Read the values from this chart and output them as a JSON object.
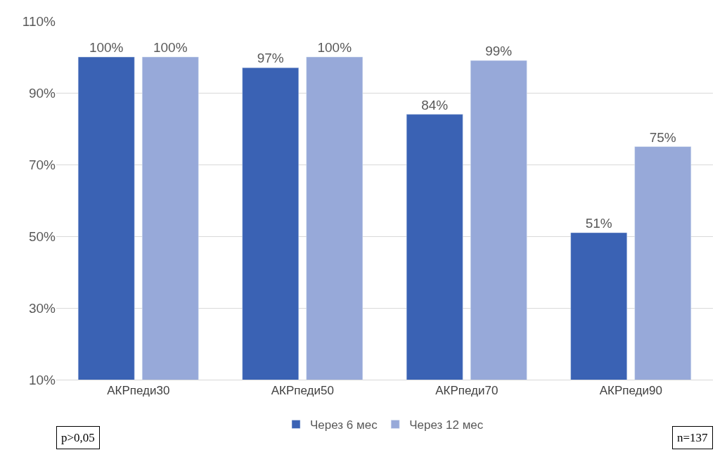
{
  "chart_data": {
    "type": "bar",
    "categories": [
      "АКРпеди30",
      "АКРпеди50",
      "АКРпеди70",
      "АКРпеди90"
    ],
    "series": [
      {
        "name": "Через 6 мес",
        "color": "#3a62b4",
        "values": [
          100,
          97,
          84,
          51
        ],
        "value_labels": [
          "100%",
          "97%",
          "84%",
          "51%"
        ]
      },
      {
        "name": "Через 12 мес",
        "color": "#97a9d9",
        "values": [
          100,
          100,
          99,
          75
        ],
        "value_labels": [
          "100%",
          "100%",
          "99%",
          "75%"
        ]
      }
    ],
    "ylim": [
      10,
      110
    ],
    "yticks": [
      {
        "value": 10,
        "label": "10%"
      },
      {
        "value": 30,
        "label": "30%"
      },
      {
        "value": 50,
        "label": "50%"
      },
      {
        "value": 70,
        "label": "70%"
      },
      {
        "value": 90,
        "label": "90%"
      },
      {
        "value": 110,
        "label": "110%"
      }
    ],
    "grid": "y",
    "legend": "bottom",
    "annotations": [
      "p>0,05",
      "n=137"
    ]
  }
}
